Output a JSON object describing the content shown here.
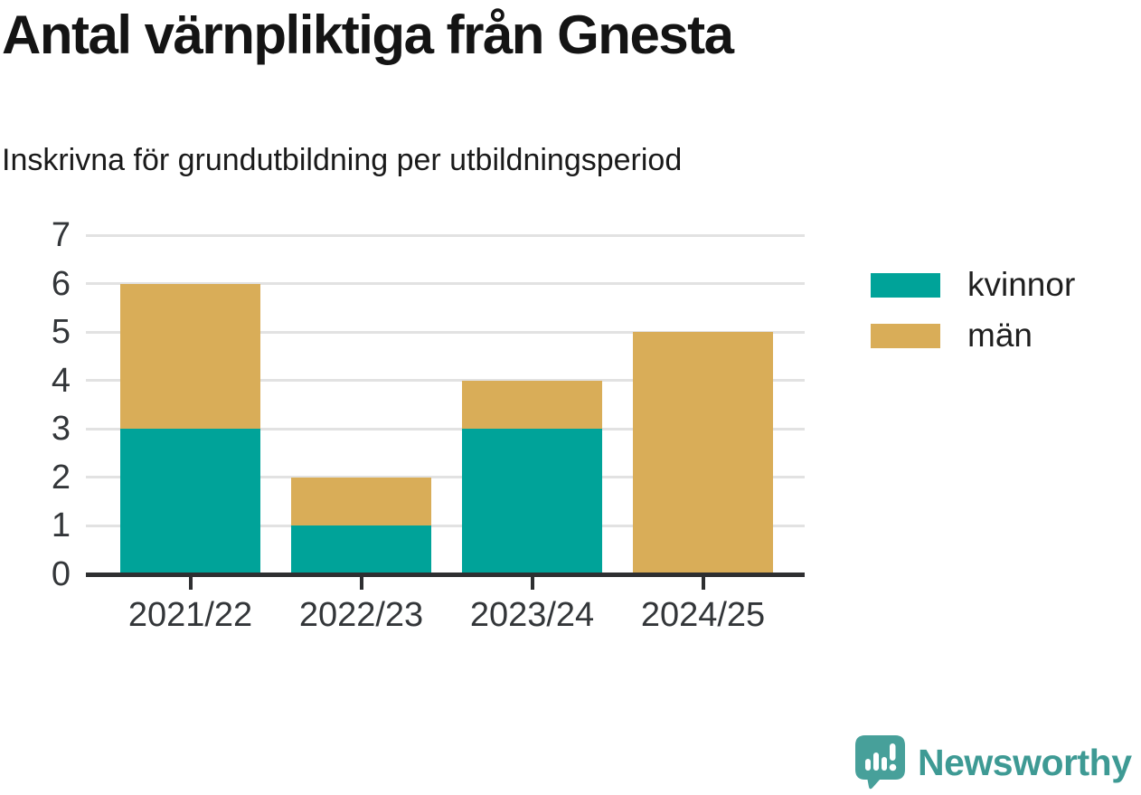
{
  "header": {
    "title": "Antal värnpliktiga från Gnesta",
    "subtitle": "Inskrivna för grundutbildning per utbildningsperiod"
  },
  "chart_data": {
    "type": "bar",
    "stacked": true,
    "title": "Antal värnpliktiga från Gnesta",
    "subtitle": "Inskrivna för grundutbildning per utbildningsperiod",
    "categories": [
      "2021/22",
      "2022/23",
      "2023/24",
      "2024/25"
    ],
    "series": [
      {
        "name": "kvinnor",
        "color": "#00A399",
        "values": [
          3,
          1,
          3,
          0
        ]
      },
      {
        "name": "män",
        "color": "#D9AD58",
        "values": [
          3,
          1,
          1,
          5
        ]
      }
    ],
    "totals": [
      6,
      2,
      4,
      5
    ],
    "xlabel": "",
    "ylabel": "",
    "ylim": [
      0,
      7
    ],
    "yticks": [
      0,
      1,
      2,
      3,
      4,
      5,
      6,
      7
    ],
    "grid": true,
    "legend_position": "right",
    "grid_color": "#E2E2E2",
    "axis_color": "#2E2F31",
    "tick_label_color": "#333639"
  },
  "branding": {
    "name": "Newsworthy",
    "icon": "speech-bubble-bar-chart-icon",
    "icon_color": "#47A09A",
    "icon_bar_color": "#FFFFFF",
    "text_color": "#3E9A94"
  }
}
